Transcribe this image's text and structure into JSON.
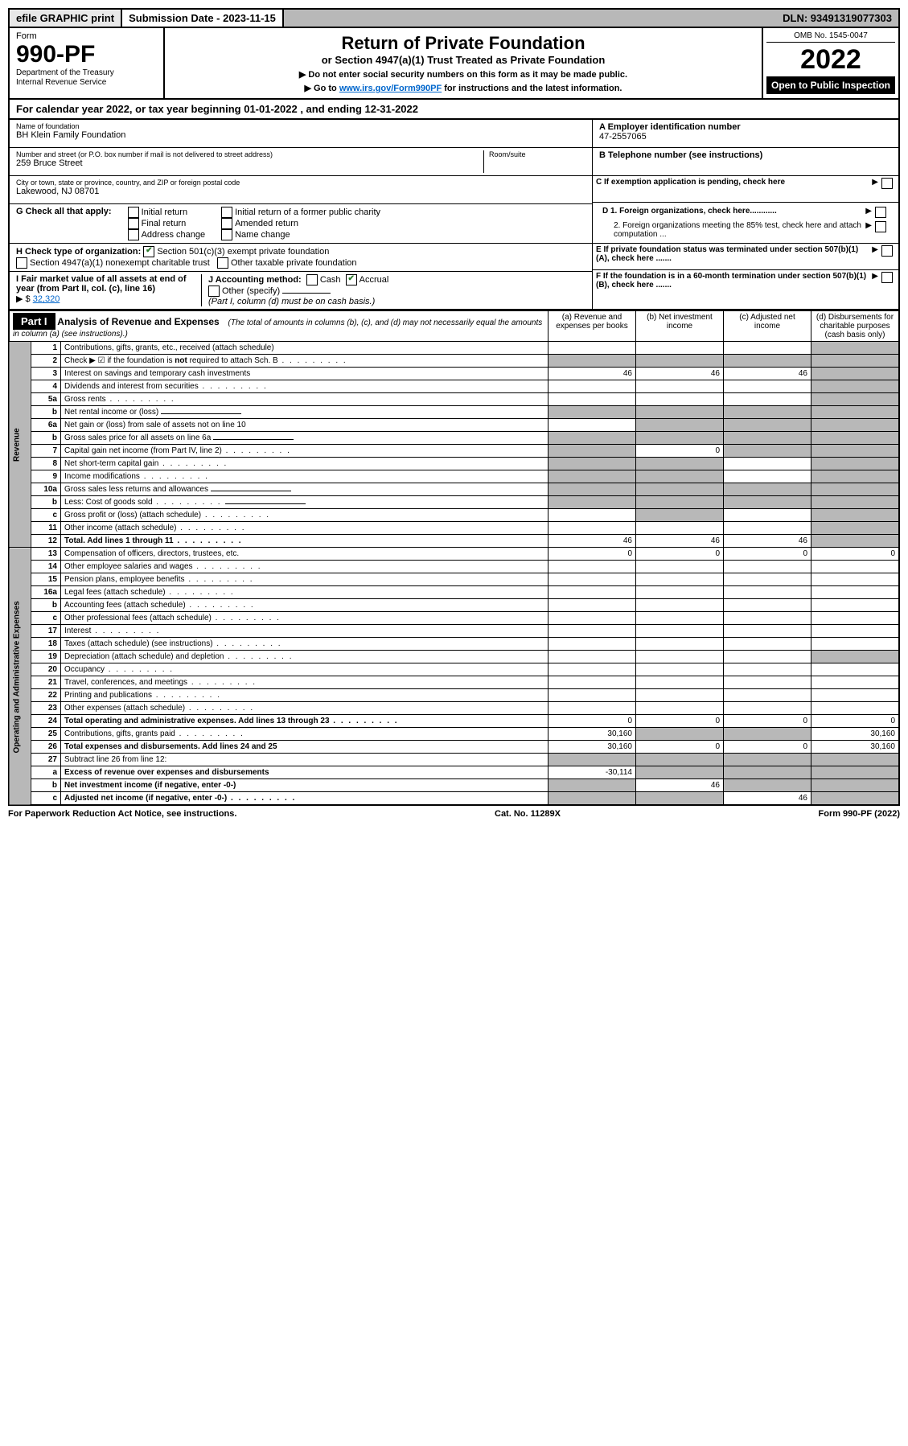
{
  "topbar": {
    "efile": "efile GRAPHIC print",
    "sub_label": "Submission Date - 2023-11-15",
    "dln": "DLN: 93491319077303"
  },
  "header": {
    "form_label": "Form",
    "form_num": "990-PF",
    "dept": "Department of the Treasury",
    "irs": "Internal Revenue Service",
    "title": "Return of Private Foundation",
    "subtitle": "or Section 4947(a)(1) Trust Treated as Private Foundation",
    "note1": "▶ Do not enter social security numbers on this form as it may be made public.",
    "note2_pre": "▶ Go to ",
    "note2_link": "www.irs.gov/Form990PF",
    "note2_post": " for instructions and the latest information.",
    "omb": "OMB No. 1545-0047",
    "year": "2022",
    "open": "Open to Public Inspection"
  },
  "cal_year": "For calendar year 2022, or tax year beginning 01-01-2022                          , and ending 12-31-2022",
  "name_block": {
    "name_lbl": "Name of foundation",
    "name_val": "BH Klein Family Foundation",
    "addr_lbl": "Number and street (or P.O. box number if mail is not delivered to street address)",
    "addr_val": "259 Bruce Street",
    "room_lbl": "Room/suite",
    "city_lbl": "City or town, state or province, country, and ZIP or foreign postal code",
    "city_val": "Lakewood, NJ  08701"
  },
  "right_block": {
    "a_lbl": "A Employer identification number",
    "a_val": "47-2557065",
    "b_lbl": "B Telephone number (see instructions)",
    "c_lbl": "C If exemption application is pending, check here",
    "d1": "D 1. Foreign organizations, check here............",
    "d2": "2. Foreign organizations meeting the 85% test, check here and attach computation ...",
    "e": "E  If private foundation status was terminated under section 507(b)(1)(A), check here .......",
    "f": "F  If the foundation is in a 60-month termination under section 507(b)(1)(B), check here .......",
    "arrow": "▶"
  },
  "g_section": {
    "lbl": "G Check all that apply:",
    "opts": [
      "Initial return",
      "Final return",
      "Address change",
      "Initial return of a former public charity",
      "Amended return",
      "Name change"
    ]
  },
  "h_section": {
    "lbl": "H Check type of organization:",
    "opt1": "Section 501(c)(3) exempt private foundation",
    "opt2": "Section 4947(a)(1) nonexempt charitable trust",
    "opt3": "Other taxable private foundation"
  },
  "i_section": {
    "lbl": "I Fair market value of all assets at end of year (from Part II, col. (c), line 16)",
    "val_pre": "▶ $",
    "val": "32,320"
  },
  "j_section": {
    "lbl": "J Accounting method:",
    "cash": "Cash",
    "accrual": "Accrual",
    "other": "Other (specify)",
    "note": "(Part I, column (d) must be on cash basis.)"
  },
  "part1": {
    "label": "Part I",
    "title": "Analysis of Revenue and Expenses",
    "subtitle": "(The total of amounts in columns (b), (c), and (d) may not necessarily equal the amounts in column (a) (see instructions).)",
    "cols": {
      "a": "(a) Revenue and expenses per books",
      "b": "(b) Net investment income",
      "c": "(c) Adjusted net income",
      "d": "(d) Disbursements for charitable purposes (cash basis only)"
    }
  },
  "side_labels": {
    "rev": "Revenue",
    "exp": "Operating and Administrative Expenses"
  },
  "rows": [
    {
      "n": "1",
      "desc": "Contributions, gifts, grants, etc., received (attach schedule)",
      "a": "",
      "b": "",
      "c": "",
      "d": "",
      "grey": [
        "d"
      ]
    },
    {
      "n": "2",
      "desc": "Check ▶ ☑ if the foundation is not required to attach Sch. B",
      "dots": true,
      "a": "",
      "b": "",
      "c": "",
      "d": "",
      "grey": [
        "a",
        "b",
        "c",
        "d"
      ],
      "bold_not": true
    },
    {
      "n": "3",
      "desc": "Interest on savings and temporary cash investments",
      "a": "46",
      "b": "46",
      "c": "46",
      "d": "",
      "grey": [
        "d"
      ]
    },
    {
      "n": "4",
      "desc": "Dividends and interest from securities",
      "dots": true,
      "a": "",
      "b": "",
      "c": "",
      "d": "",
      "grey": [
        "d"
      ]
    },
    {
      "n": "5a",
      "desc": "Gross rents",
      "dots": true,
      "a": "",
      "b": "",
      "c": "",
      "d": "",
      "grey": [
        "d"
      ]
    },
    {
      "n": "b",
      "desc": "Net rental income or (loss)",
      "underline": true,
      "a": "",
      "b": "",
      "c": "",
      "d": "",
      "grey": [
        "a",
        "b",
        "c",
        "d"
      ]
    },
    {
      "n": "6a",
      "desc": "Net gain or (loss) from sale of assets not on line 10",
      "a": "",
      "b": "",
      "c": "",
      "d": "",
      "grey": [
        "b",
        "c",
        "d"
      ]
    },
    {
      "n": "b",
      "desc": "Gross sales price for all assets on line 6a",
      "underline": true,
      "a": "",
      "b": "",
      "c": "",
      "d": "",
      "grey": [
        "a",
        "b",
        "c",
        "d"
      ]
    },
    {
      "n": "7",
      "desc": "Capital gain net income (from Part IV, line 2)",
      "dots": true,
      "a": "",
      "b": "0",
      "c": "",
      "d": "",
      "grey": [
        "a",
        "c",
        "d"
      ]
    },
    {
      "n": "8",
      "desc": "Net short-term capital gain",
      "dots": true,
      "a": "",
      "b": "",
      "c": "",
      "d": "",
      "grey": [
        "a",
        "b",
        "d"
      ]
    },
    {
      "n": "9",
      "desc": "Income modifications",
      "dots": true,
      "a": "",
      "b": "",
      "c": "",
      "d": "",
      "grey": [
        "a",
        "b",
        "d"
      ]
    },
    {
      "n": "10a",
      "desc": "Gross sales less returns and allowances",
      "underline": true,
      "a": "",
      "b": "",
      "c": "",
      "d": "",
      "grey": [
        "a",
        "b",
        "c",
        "d"
      ]
    },
    {
      "n": "b",
      "desc": "Less: Cost of goods sold",
      "dots": true,
      "underline": true,
      "a": "",
      "b": "",
      "c": "",
      "d": "",
      "grey": [
        "a",
        "b",
        "c",
        "d"
      ]
    },
    {
      "n": "c",
      "desc": "Gross profit or (loss) (attach schedule)",
      "dots": true,
      "a": "",
      "b": "",
      "c": "",
      "d": "",
      "grey": [
        "b",
        "d"
      ]
    },
    {
      "n": "11",
      "desc": "Other income (attach schedule)",
      "dots": true,
      "a": "",
      "b": "",
      "c": "",
      "d": "",
      "grey": [
        "d"
      ]
    },
    {
      "n": "12",
      "desc": "Total. Add lines 1 through 11",
      "dots": true,
      "bold": true,
      "a": "46",
      "b": "46",
      "c": "46",
      "d": "",
      "grey": [
        "d"
      ]
    },
    {
      "n": "13",
      "desc": "Compensation of officers, directors, trustees, etc.",
      "a": "0",
      "b": "0",
      "c": "0",
      "d": "0"
    },
    {
      "n": "14",
      "desc": "Other employee salaries and wages",
      "dots": true,
      "a": "",
      "b": "",
      "c": "",
      "d": ""
    },
    {
      "n": "15",
      "desc": "Pension plans, employee benefits",
      "dots": true,
      "a": "",
      "b": "",
      "c": "",
      "d": ""
    },
    {
      "n": "16a",
      "desc": "Legal fees (attach schedule)",
      "dots": true,
      "a": "",
      "b": "",
      "c": "",
      "d": ""
    },
    {
      "n": "b",
      "desc": "Accounting fees (attach schedule)",
      "dots": true,
      "a": "",
      "b": "",
      "c": "",
      "d": ""
    },
    {
      "n": "c",
      "desc": "Other professional fees (attach schedule)",
      "dots": true,
      "a": "",
      "b": "",
      "c": "",
      "d": ""
    },
    {
      "n": "17",
      "desc": "Interest",
      "dots": true,
      "a": "",
      "b": "",
      "c": "",
      "d": ""
    },
    {
      "n": "18",
      "desc": "Taxes (attach schedule) (see instructions)",
      "dots": true,
      "a": "",
      "b": "",
      "c": "",
      "d": ""
    },
    {
      "n": "19",
      "desc": "Depreciation (attach schedule) and depletion",
      "dots": true,
      "a": "",
      "b": "",
      "c": "",
      "d": "",
      "grey": [
        "d"
      ]
    },
    {
      "n": "20",
      "desc": "Occupancy",
      "dots": true,
      "a": "",
      "b": "",
      "c": "",
      "d": ""
    },
    {
      "n": "21",
      "desc": "Travel, conferences, and meetings",
      "dots": true,
      "a": "",
      "b": "",
      "c": "",
      "d": ""
    },
    {
      "n": "22",
      "desc": "Printing and publications",
      "dots": true,
      "a": "",
      "b": "",
      "c": "",
      "d": ""
    },
    {
      "n": "23",
      "desc": "Other expenses (attach schedule)",
      "dots": true,
      "a": "",
      "b": "",
      "c": "",
      "d": ""
    },
    {
      "n": "24",
      "desc": "Total operating and administrative expenses. Add lines 13 through 23",
      "dots": true,
      "bold": true,
      "a": "0",
      "b": "0",
      "c": "0",
      "d": "0"
    },
    {
      "n": "25",
      "desc": "Contributions, gifts, grants paid",
      "dots": true,
      "a": "30,160",
      "b": "",
      "c": "",
      "d": "30,160",
      "grey": [
        "b",
        "c"
      ]
    },
    {
      "n": "26",
      "desc": "Total expenses and disbursements. Add lines 24 and 25",
      "bold": true,
      "a": "30,160",
      "b": "0",
      "c": "0",
      "d": "30,160"
    },
    {
      "n": "27",
      "desc": "Subtract line 26 from line 12:",
      "a": "",
      "b": "",
      "c": "",
      "d": "",
      "grey": [
        "a",
        "b",
        "c",
        "d"
      ]
    },
    {
      "n": "a",
      "desc": "Excess of revenue over expenses and disbursements",
      "bold": true,
      "a": "-30,114",
      "b": "",
      "c": "",
      "d": "",
      "grey": [
        "b",
        "c",
        "d"
      ]
    },
    {
      "n": "b",
      "desc": "Net investment income (if negative, enter -0-)",
      "bold": true,
      "a": "",
      "b": "46",
      "c": "",
      "d": "",
      "grey": [
        "a",
        "c",
        "d"
      ]
    },
    {
      "n": "c",
      "desc": "Adjusted net income (if negative, enter -0-)",
      "dots": true,
      "bold": true,
      "a": "",
      "b": "",
      "c": "46",
      "d": "",
      "grey": [
        "a",
        "b",
        "d"
      ]
    }
  ],
  "footer": {
    "left": "For Paperwork Reduction Act Notice, see instructions.",
    "mid": "Cat. No. 11289X",
    "right": "Form 990-PF (2022)"
  }
}
